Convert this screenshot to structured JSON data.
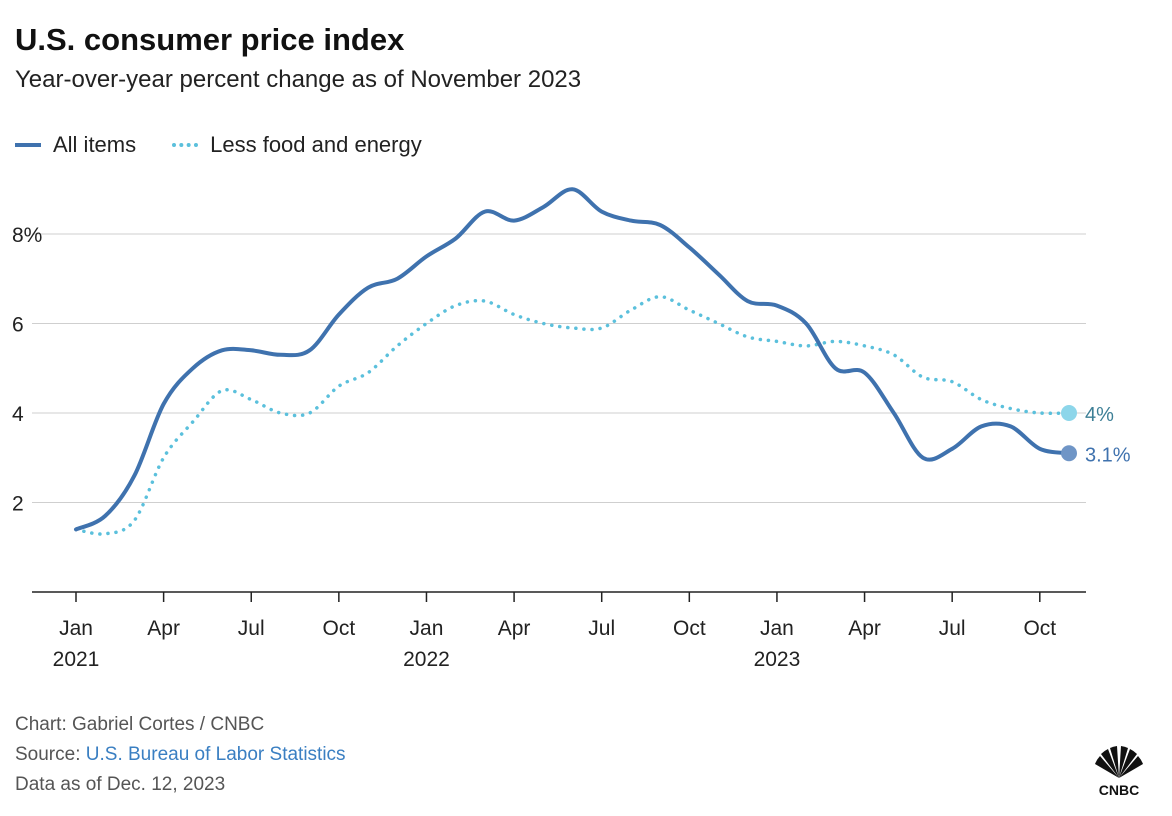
{
  "header": {
    "title": "U.S. consumer price index",
    "subtitle": "Year-over-year percent change as of November 2023"
  },
  "chart_data": {
    "type": "line",
    "title": "U.S. consumer price index",
    "subtitle": "Year-over-year percent change as of November 2023",
    "x_ticks": [
      {
        "date": "2021-01",
        "label": "Jan",
        "year": "2021"
      },
      {
        "date": "2021-04",
        "label": "Apr",
        "year": ""
      },
      {
        "date": "2021-07",
        "label": "Jul",
        "year": ""
      },
      {
        "date": "2021-10",
        "label": "Oct",
        "year": ""
      },
      {
        "date": "2022-01",
        "label": "Jan",
        "year": "2022"
      },
      {
        "date": "2022-04",
        "label": "Apr",
        "year": ""
      },
      {
        "date": "2022-07",
        "label": "Jul",
        "year": ""
      },
      {
        "date": "2022-10",
        "label": "Oct",
        "year": ""
      },
      {
        "date": "2023-01",
        "label": "Jan",
        "year": "2023"
      },
      {
        "date": "2023-04",
        "label": "Apr",
        "year": ""
      },
      {
        "date": "2023-07",
        "label": "Jul",
        "year": ""
      },
      {
        "date": "2023-10",
        "label": "Oct",
        "year": ""
      }
    ],
    "y_ticks": [
      {
        "value": 2,
        "label": "2"
      },
      {
        "value": 4,
        "label": "4"
      },
      {
        "value": 6,
        "label": "6"
      },
      {
        "value": 8,
        "label": "8%"
      }
    ],
    "xlim": [
      "2021-01",
      "2023-12"
    ],
    "ylim": [
      0,
      9.5
    ],
    "grid": true,
    "legend_position": "top-left",
    "x": [
      "2021-01",
      "2021-02",
      "2021-03",
      "2021-04",
      "2021-05",
      "2021-06",
      "2021-07",
      "2021-08",
      "2021-09",
      "2021-10",
      "2021-11",
      "2021-12",
      "2022-01",
      "2022-02",
      "2022-03",
      "2022-04",
      "2022-05",
      "2022-06",
      "2022-07",
      "2022-08",
      "2022-09",
      "2022-10",
      "2022-11",
      "2022-12",
      "2023-01",
      "2023-02",
      "2023-03",
      "2023-04",
      "2023-05",
      "2023-06",
      "2023-07",
      "2023-08",
      "2023-09",
      "2023-10",
      "2023-11"
    ],
    "series": [
      {
        "name": "All items",
        "color": "#3f72ae",
        "style": "solid",
        "end_label": "3.1%",
        "values": [
          1.4,
          1.7,
          2.6,
          4.2,
          5.0,
          5.4,
          5.4,
          5.3,
          5.4,
          6.2,
          6.8,
          7.0,
          7.5,
          7.9,
          8.5,
          8.3,
          8.6,
          9.0,
          8.5,
          8.3,
          8.2,
          7.7,
          7.1,
          6.5,
          6.4,
          6.0,
          5.0,
          4.9,
          4.0,
          3.0,
          3.2,
          3.7,
          3.7,
          3.2,
          3.1
        ]
      },
      {
        "name": "Less food and energy",
        "color": "#5bc0dc",
        "style": "dotted",
        "end_label": "4%",
        "values": [
          1.4,
          1.3,
          1.6,
          3.0,
          3.8,
          4.5,
          4.3,
          4.0,
          4.0,
          4.6,
          4.9,
          5.5,
          6.0,
          6.4,
          6.5,
          6.2,
          6.0,
          5.9,
          5.9,
          6.3,
          6.6,
          6.3,
          6.0,
          5.7,
          5.6,
          5.5,
          5.6,
          5.5,
          5.3,
          4.8,
          4.7,
          4.3,
          4.1,
          4.0,
          4.0
        ]
      }
    ]
  },
  "footer": {
    "credit": "Chart: Gabriel Cortes / CNBC",
    "source_prefix": "Source: ",
    "source_link": "U.S. Bureau of Labor Statistics",
    "date_note": "Data as of Dec. 12, 2023"
  },
  "logo": {
    "text": "CNBC",
    "colors": [
      "#111111",
      "#ffffff"
    ]
  }
}
